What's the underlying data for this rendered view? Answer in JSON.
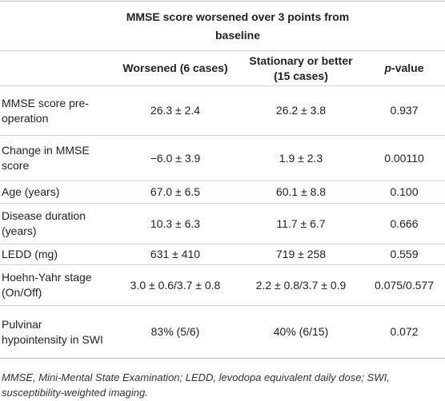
{
  "table": {
    "group_header": "MMSE score worsened over 3 points from baseline",
    "columns": [
      "Worsened (6 cases)",
      "Stationary or better (15 cases)",
      "p-value"
    ],
    "rows": [
      [
        "MMSE score pre-operation",
        "26.3 ± 2.4",
        "26.2 ± 3.8",
        "0.937"
      ],
      [
        "Change in MMSE score",
        "−6.0 ± 3.9",
        "1.9 ± 2.3",
        "0.00110"
      ],
      [
        "Age (years)",
        "67.0 ± 6.5",
        "60.1 ± 8.8",
        "0.100"
      ],
      [
        "Disease duration (years)",
        "10.3 ± 6.3",
        "11.7 ± 6.7",
        "0.666"
      ],
      [
        "LEDD (mg)",
        "631 ± 410",
        "719 ± 258",
        "0.559"
      ],
      [
        "Hoehn-Yahr stage (On/Off)",
        "3.0 ± 0.6/3.7 ± 0.8",
        "2.2 ± 0.8/3.7 ± 0.9",
        "0.075/0.577"
      ],
      [
        "Pulvinar hypointensity in SWI",
        "83% (5/6)",
        "40% (6/15)",
        "0.072"
      ]
    ],
    "footnote": "MMSE, Mini-Mental State Examination; LEDD, levodopa equivalent daily dose; SWI, susceptibility-weighted imaging."
  }
}
